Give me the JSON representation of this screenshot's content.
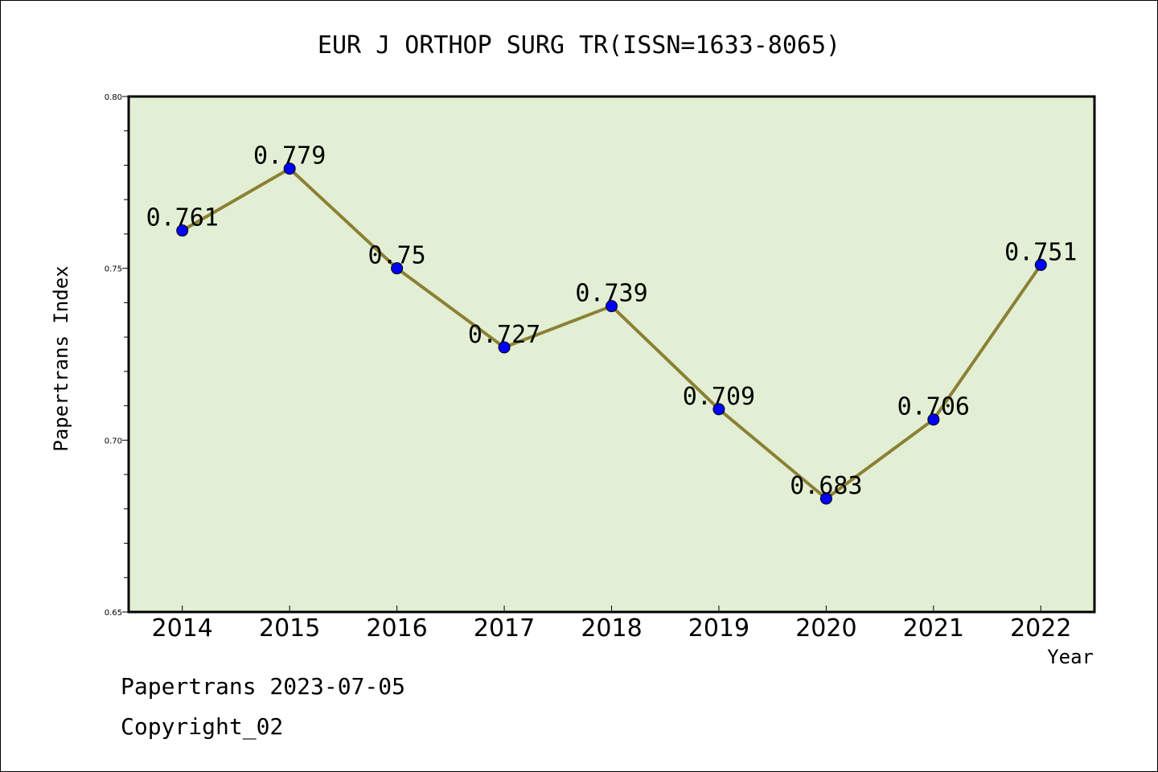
{
  "chart_data": {
    "type": "line",
    "title": "EUR J ORTHOP SURG TR(ISSN=1633-8065)",
    "xlabel": "Year",
    "ylabel": "Papertrans Index",
    "categories": [
      "2014",
      "2015",
      "2016",
      "2017",
      "2018",
      "2019",
      "2020",
      "2021",
      "2022"
    ],
    "values": [
      0.761,
      0.779,
      0.75,
      0.727,
      0.739,
      0.709,
      0.683,
      0.706,
      0.751
    ],
    "data_labels": [
      "0.761",
      "0.779",
      "0.75",
      "0.727",
      "0.739",
      "0.709",
      "0.683",
      "0.706",
      "0.751"
    ],
    "ylim": [
      0.65,
      0.8
    ],
    "yticks": [
      "0.65",
      "0.70",
      "0.75",
      "0.80"
    ],
    "grid": false,
    "colors": {
      "plot_background": "#e2efd5",
      "line": "#8b8034",
      "marker": "#0000ff"
    }
  },
  "footer": {
    "line1": "Papertrans 2023-07-05",
    "line2": "Copyright_02"
  }
}
